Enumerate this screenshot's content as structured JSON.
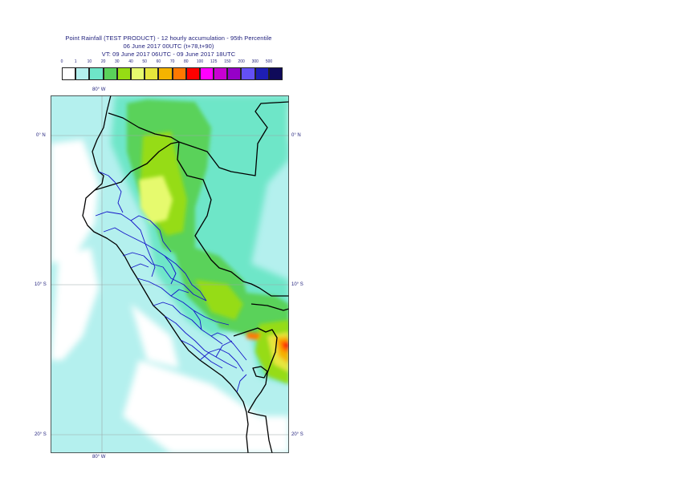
{
  "header": {
    "title": "Point Rainfall (TEST PRODUCT) - 12 hourly accumulation - 95th Percentile",
    "base_time": "06 June 2017 00UTC (t+78,t+90)",
    "valid_time": "VT: 09 June 2017 06UTC - 09 June 2017 18UTC"
  },
  "legend": {
    "ticks": [
      "0",
      "1",
      "10",
      "20",
      "30",
      "40",
      "50",
      "60",
      "70",
      "80",
      "100",
      "125",
      "150",
      "200",
      "300",
      "500"
    ],
    "colors": [
      "#ffffff",
      "#b4f0ee",
      "#6ee6c8",
      "#5ad25a",
      "#96dc14",
      "#e6fa6e",
      "#e6e63c",
      "#f5b400",
      "#ff7800",
      "#ff0000",
      "#ff00ff",
      "#c800d2",
      "#9600c8",
      "#6450f5",
      "#1e1eb4",
      "#0f0a5a"
    ]
  },
  "map": {
    "labels": {
      "lon_top": "80° W",
      "lon_bottom": "80° W",
      "lat_0_left": "0° N",
      "lat_0_right": "0° N",
      "lat_10_left": "10° S",
      "lat_10_right": "10° S",
      "lat_20_left": "20° S",
      "lat_20_right": "20° S"
    },
    "colors": {
      "background": "#b4f0ee",
      "ocean": "#b4f0ee",
      "border_country": "#000000",
      "border_region": "#1414c8",
      "graticule": "#9aa8a8"
    }
  }
}
